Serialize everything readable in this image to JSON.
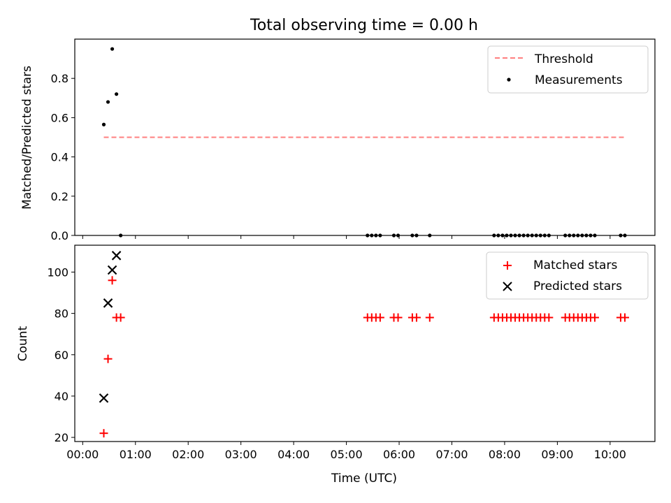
{
  "chart_data": [
    {
      "type": "scatter",
      "title": "Total observing time = 0.00 h",
      "xlabel": "",
      "ylabel": "Matched/Predicted stars",
      "xlim_hours": [
        -0.15,
        10.85
      ],
      "ylim": [
        0,
        1.0
      ],
      "yticks": [
        0.0,
        0.2,
        0.4,
        0.6,
        0.8
      ],
      "ytick_labels": [
        "0.0",
        "0.2",
        "0.4",
        "0.6",
        "0.8"
      ],
      "legend_position": "top-right",
      "series": [
        {
          "name": "Threshold",
          "kind": "line",
          "style": "dashed",
          "color": "#ff7f7f",
          "x": [
            0.4,
            10.3
          ],
          "y": [
            0.5,
            0.5
          ]
        },
        {
          "name": "Measurements",
          "kind": "scatter",
          "marker": "dot",
          "color": "#000000",
          "x": [
            0.4,
            0.48,
            0.56,
            0.64,
            0.72,
            5.4,
            5.48,
            5.56,
            5.64,
            5.9,
            5.98,
            6.25,
            6.33,
            6.58,
            7.8,
            7.88,
            7.96,
            8.04,
            8.12,
            8.2,
            8.28,
            8.36,
            8.44,
            8.52,
            8.6,
            8.68,
            8.76,
            8.84,
            9.15,
            9.23,
            9.31,
            9.39,
            9.47,
            9.55,
            9.63,
            9.71,
            10.2,
            10.28
          ],
          "y": [
            0.565,
            0.68,
            0.95,
            0.72,
            0.0,
            0.0,
            0.0,
            0.0,
            0.0,
            0.0,
            0.0,
            0.0,
            0.0,
            0.0,
            0.0,
            0.0,
            0.0,
            0.0,
            0.0,
            0.0,
            0.0,
            0.0,
            0.0,
            0.0,
            0.0,
            0.0,
            0.0,
            0.0,
            0.0,
            0.0,
            0.0,
            0.0,
            0.0,
            0.0,
            0.0,
            0.0,
            0.0,
            0.0
          ]
        }
      ]
    },
    {
      "type": "scatter",
      "title": "",
      "xlabel": "Time (UTC)",
      "ylabel": "Count",
      "xlim_hours": [
        -0.15,
        10.85
      ],
      "ylim": [
        18,
        113
      ],
      "xticks_hours": [
        0,
        1,
        2,
        3,
        4,
        5,
        6,
        7,
        8,
        9,
        10
      ],
      "xtick_labels": [
        "00:00",
        "01:00",
        "02:00",
        "03:00",
        "04:00",
        "05:00",
        "06:00",
        "07:00",
        "08:00",
        "09:00",
        "10:00"
      ],
      "yticks": [
        20,
        40,
        60,
        80,
        100
      ],
      "ytick_labels": [
        "20",
        "40",
        "60",
        "80",
        "100"
      ],
      "legend_position": "top-right",
      "series": [
        {
          "name": "Matched stars",
          "kind": "scatter",
          "marker": "plus",
          "color": "#ff0000",
          "x": [
            0.4,
            0.48,
            0.56,
            0.64,
            0.72,
            5.4,
            5.48,
            5.56,
            5.64,
            5.9,
            5.98,
            6.25,
            6.33,
            6.58,
            7.8,
            7.88,
            7.96,
            8.04,
            8.12,
            8.2,
            8.28,
            8.36,
            8.44,
            8.52,
            8.6,
            8.68,
            8.76,
            8.84,
            9.15,
            9.23,
            9.31,
            9.39,
            9.47,
            9.55,
            9.63,
            9.71,
            10.2,
            10.28
          ],
          "y": [
            22,
            58,
            96,
            78,
            78,
            78,
            78,
            78,
            78,
            78,
            78,
            78,
            78,
            78,
            78,
            78,
            78,
            78,
            78,
            78,
            78,
            78,
            78,
            78,
            78,
            78,
            78,
            78,
            78,
            78,
            78,
            78,
            78,
            78,
            78,
            78,
            78,
            78
          ]
        },
        {
          "name": "Predicted stars",
          "kind": "scatter",
          "marker": "x",
          "color": "#000000",
          "x": [
            0.4,
            0.48,
            0.56,
            0.64
          ],
          "y": [
            39,
            85,
            101,
            108
          ]
        }
      ]
    }
  ]
}
